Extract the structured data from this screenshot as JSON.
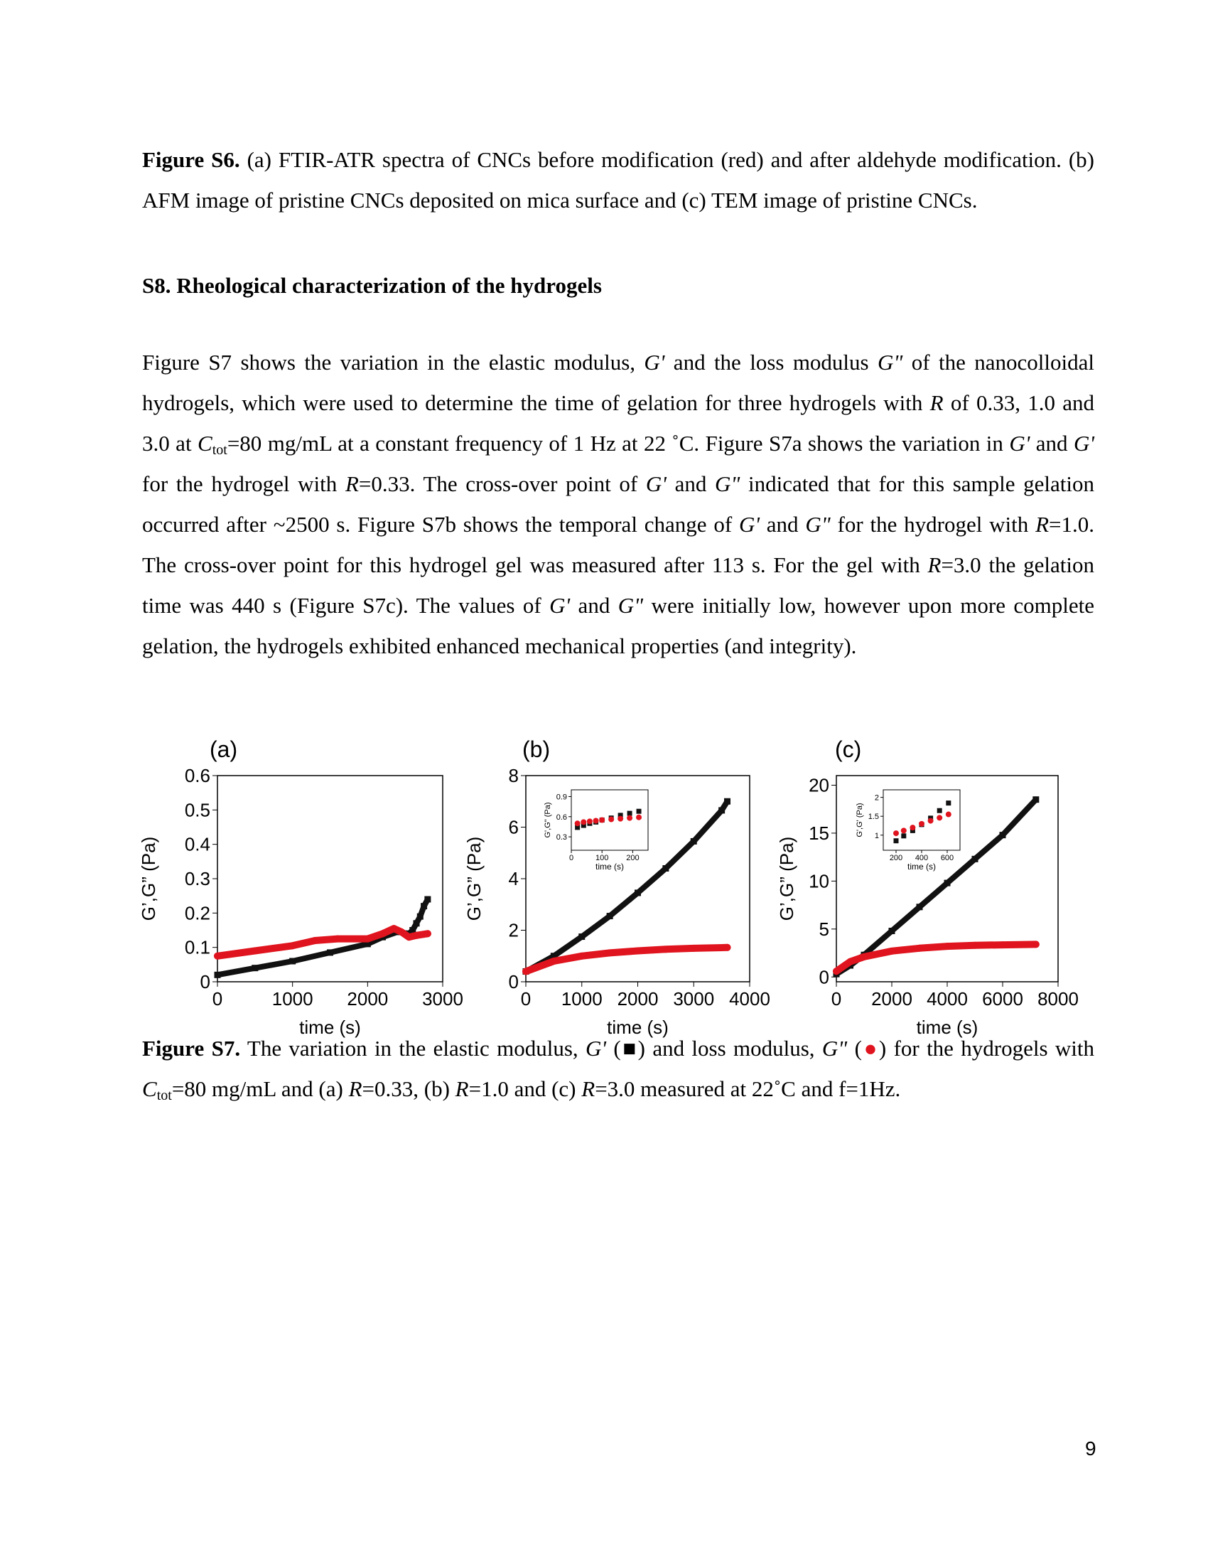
{
  "caption_s6": {
    "label": "Figure S6.",
    "text": " (a) FTIR-ATR spectra of CNCs before modification (red) and after aldehyde modification. (b) AFM image of pristine CNCs deposited on mica surface and (c) TEM image of pristine CNCs."
  },
  "section_heading": "S8. Rheological characterization of the hydrogels",
  "paragraph": {
    "t1": "Figure S7 shows the variation in  the elastic modulus, ",
    "gp1": "G'",
    "t2": " and the loss modulus ",
    "gpp1": "G\"",
    "t3": " of the nanocolloidal hydrogels, which were used to determine the time of gelation for three hydrogels with ",
    "r1": "R",
    "t4": "  of 0.33, 1.0 and 3.0 at ",
    "c1": "C",
    "tot1": "tot",
    "t5": "=80 mg/mL at a constant frequency of 1 Hz at 22 ˚C. Figure S7a shows the variation in ",
    "gp2": "G'",
    "t6": " and ",
    "gp3": "G'",
    "t7": " for the hydrogel with ",
    "r2": "R",
    "t8": "=0.33. The cross-over point of ",
    "gp4": "G'",
    "t9": " and ",
    "gpp2": "G\"",
    "t10": " indicated that for this sample gelation occurred after ~2500 s. Figure S7b shows the temporal change of ",
    "gp5": "G'",
    "t11": " and ",
    "gpp3": "G\"",
    "t12": " for the hydrogel with ",
    "r3": "R",
    "t13": "=1.0. The cross-over point for this hydrogel gel was measured after 113 s. For the gel with ",
    "r4": "R",
    "t14": "=3.0 the gelation time was 440 s (Figure S7c). The values of ",
    "gp6": "G'",
    "t15": " and ",
    "gpp4": "G\"",
    "t16": " were initially low, however upon more complete gelation, the hydrogels exhibited enhanced mechanical properties (and integrity)."
  },
  "caption_s7": {
    "label": "Figure S7.",
    "t1": " The variation in the elastic modulus, ",
    "gp": "G'",
    "t2": " (",
    "square": "■",
    "t3": ") and loss modulus, ",
    "gpp": "G\"",
    "t4": " (",
    "dot": "●",
    "t5": ") for the hydrogels with ",
    "c": "C",
    "tot": "tot",
    "t6": "=80 mg/mL and (a) ",
    "ra": "R",
    "t7": "=0.33, (b) ",
    "rb": "R",
    "t8": "=1.0 and (c) ",
    "rc": "R",
    "t9": "=3.0 measured at 22˚C and f=1Hz."
  },
  "page_number": "9",
  "colors": {
    "g_prime": "#111111",
    "g_double_prime": "#e0141e"
  },
  "chart_data": [
    {
      "type": "scatter",
      "panel_label": "(a)",
      "xlabel": "time (s)",
      "ylabel": "G’,G” (Pa)",
      "xlim": [
        0,
        3000
      ],
      "ylim": [
        0,
        0.6
      ],
      "xticks": [
        0,
        1000,
        2000,
        3000
      ],
      "yticks": [
        0,
        0.1,
        0.2,
        0.3,
        0.4,
        0.5,
        0.6
      ],
      "ytick_labels": [
        "0",
        "0.1",
        "0.2",
        "0.3",
        "0.4",
        "0.5",
        "0.6"
      ],
      "series": [
        {
          "marker": "square",
          "x": [
            0,
            500,
            1000,
            1500,
            2000,
            2200,
            2400,
            2550,
            2600,
            2650,
            2700,
            2750,
            2800
          ],
          "y": [
            0.02,
            0.04,
            0.06,
            0.085,
            0.11,
            0.13,
            0.145,
            0.14,
            0.15,
            0.17,
            0.19,
            0.22,
            0.24
          ]
        },
        {
          "marker": "circle",
          "x": [
            0,
            500,
            1000,
            1300,
            1600,
            2000,
            2200,
            2350,
            2450,
            2550,
            2650,
            2800
          ],
          "y": [
            0.075,
            0.09,
            0.105,
            0.12,
            0.125,
            0.125,
            0.14,
            0.155,
            0.145,
            0.13,
            0.135,
            0.14
          ]
        }
      ]
    },
    {
      "type": "scatter",
      "panel_label": "(b)",
      "xlabel": "time (s)",
      "ylabel": "G’,G” (Pa)",
      "xlim": [
        0,
        4000
      ],
      "ylim": [
        0,
        8
      ],
      "xticks": [
        0,
        1000,
        2000,
        3000,
        4000
      ],
      "yticks": [
        0,
        2,
        4,
        6,
        8
      ],
      "ytick_labels": [
        "0",
        "2",
        "4",
        "6",
        "8"
      ],
      "series": [
        {
          "marker": "square",
          "x": [
            0,
            500,
            1000,
            1500,
            2000,
            2500,
            3000,
            3500,
            3600
          ],
          "y": [
            0.4,
            1.0,
            1.75,
            2.55,
            3.45,
            4.4,
            5.45,
            6.65,
            7.0
          ]
        },
        {
          "marker": "circle",
          "x": [
            0,
            500,
            1000,
            1500,
            2000,
            2500,
            3000,
            3600
          ],
          "y": [
            0.4,
            0.8,
            1.0,
            1.12,
            1.2,
            1.26,
            1.3,
            1.33
          ]
        }
      ],
      "inset": {
        "xlabel": "time (s)",
        "ylabel": "G',G\" (Pa)",
        "xlim": [
          0,
          250
        ],
        "ylim": [
          0.1,
          1.0
        ],
        "xticks": [
          0,
          100,
          200
        ],
        "yticks": [
          0.3,
          0.6,
          0.9
        ],
        "ytick_labels": [
          "0.3",
          "0.6",
          "0.9"
        ],
        "series": [
          {
            "marker": "square",
            "x": [
              20,
              40,
              60,
              80,
              100,
              130,
              160,
              190,
              220
            ],
            "y": [
              0.44,
              0.47,
              0.5,
              0.52,
              0.55,
              0.58,
              0.62,
              0.65,
              0.68
            ]
          },
          {
            "marker": "circle",
            "x": [
              20,
              40,
              60,
              80,
              100,
              130,
              160,
              190,
              220
            ],
            "y": [
              0.5,
              0.52,
              0.53,
              0.54,
              0.55,
              0.56,
              0.57,
              0.58,
              0.59
            ]
          }
        ]
      }
    },
    {
      "type": "scatter",
      "panel_label": "(c)",
      "xlabel": "time (s)",
      "ylabel": "G’,G” (Pa)",
      "xlim": [
        0,
        8000
      ],
      "ylim": [
        -0.5,
        21
      ],
      "xticks": [
        0,
        2000,
        4000,
        6000,
        8000
      ],
      "yticks": [
        0,
        5,
        10,
        15,
        20
      ],
      "ytick_labels": [
        "0",
        "5",
        "10",
        "15",
        "20"
      ],
      "series": [
        {
          "marker": "square",
          "x": [
            0,
            500,
            1000,
            2000,
            3000,
            4000,
            5000,
            6000,
            7200
          ],
          "y": [
            0.3,
            1.2,
            2.3,
            4.8,
            7.3,
            9.8,
            12.3,
            14.8,
            18.5
          ]
        },
        {
          "marker": "circle",
          "x": [
            0,
            500,
            1000,
            2000,
            3000,
            4000,
            5000,
            6000,
            7200
          ],
          "y": [
            0.6,
            1.6,
            2.1,
            2.7,
            3.0,
            3.2,
            3.3,
            3.35,
            3.4
          ]
        }
      ],
      "inset": {
        "xlabel": "time (s)",
        "ylabel": "G',G' (Pa)",
        "xlim": [
          100,
          700
        ],
        "ylim": [
          0.6,
          2.2
        ],
        "xticks": [
          200,
          400,
          600
        ],
        "yticks": [
          1,
          1.5,
          2
        ],
        "ytick_labels": [
          "1",
          "1.5",
          "2"
        ],
        "series": [
          {
            "marker": "square",
            "x": [
              200,
              260,
              330,
              400,
              470,
              540,
              610
            ],
            "y": [
              0.85,
              0.98,
              1.12,
              1.28,
              1.45,
              1.65,
              1.85
            ]
          },
          {
            "marker": "circle",
            "x": [
              200,
              260,
              330,
              400,
              470,
              540,
              610
            ],
            "y": [
              1.05,
              1.12,
              1.2,
              1.3,
              1.38,
              1.46,
              1.55
            ]
          }
        ]
      }
    }
  ]
}
